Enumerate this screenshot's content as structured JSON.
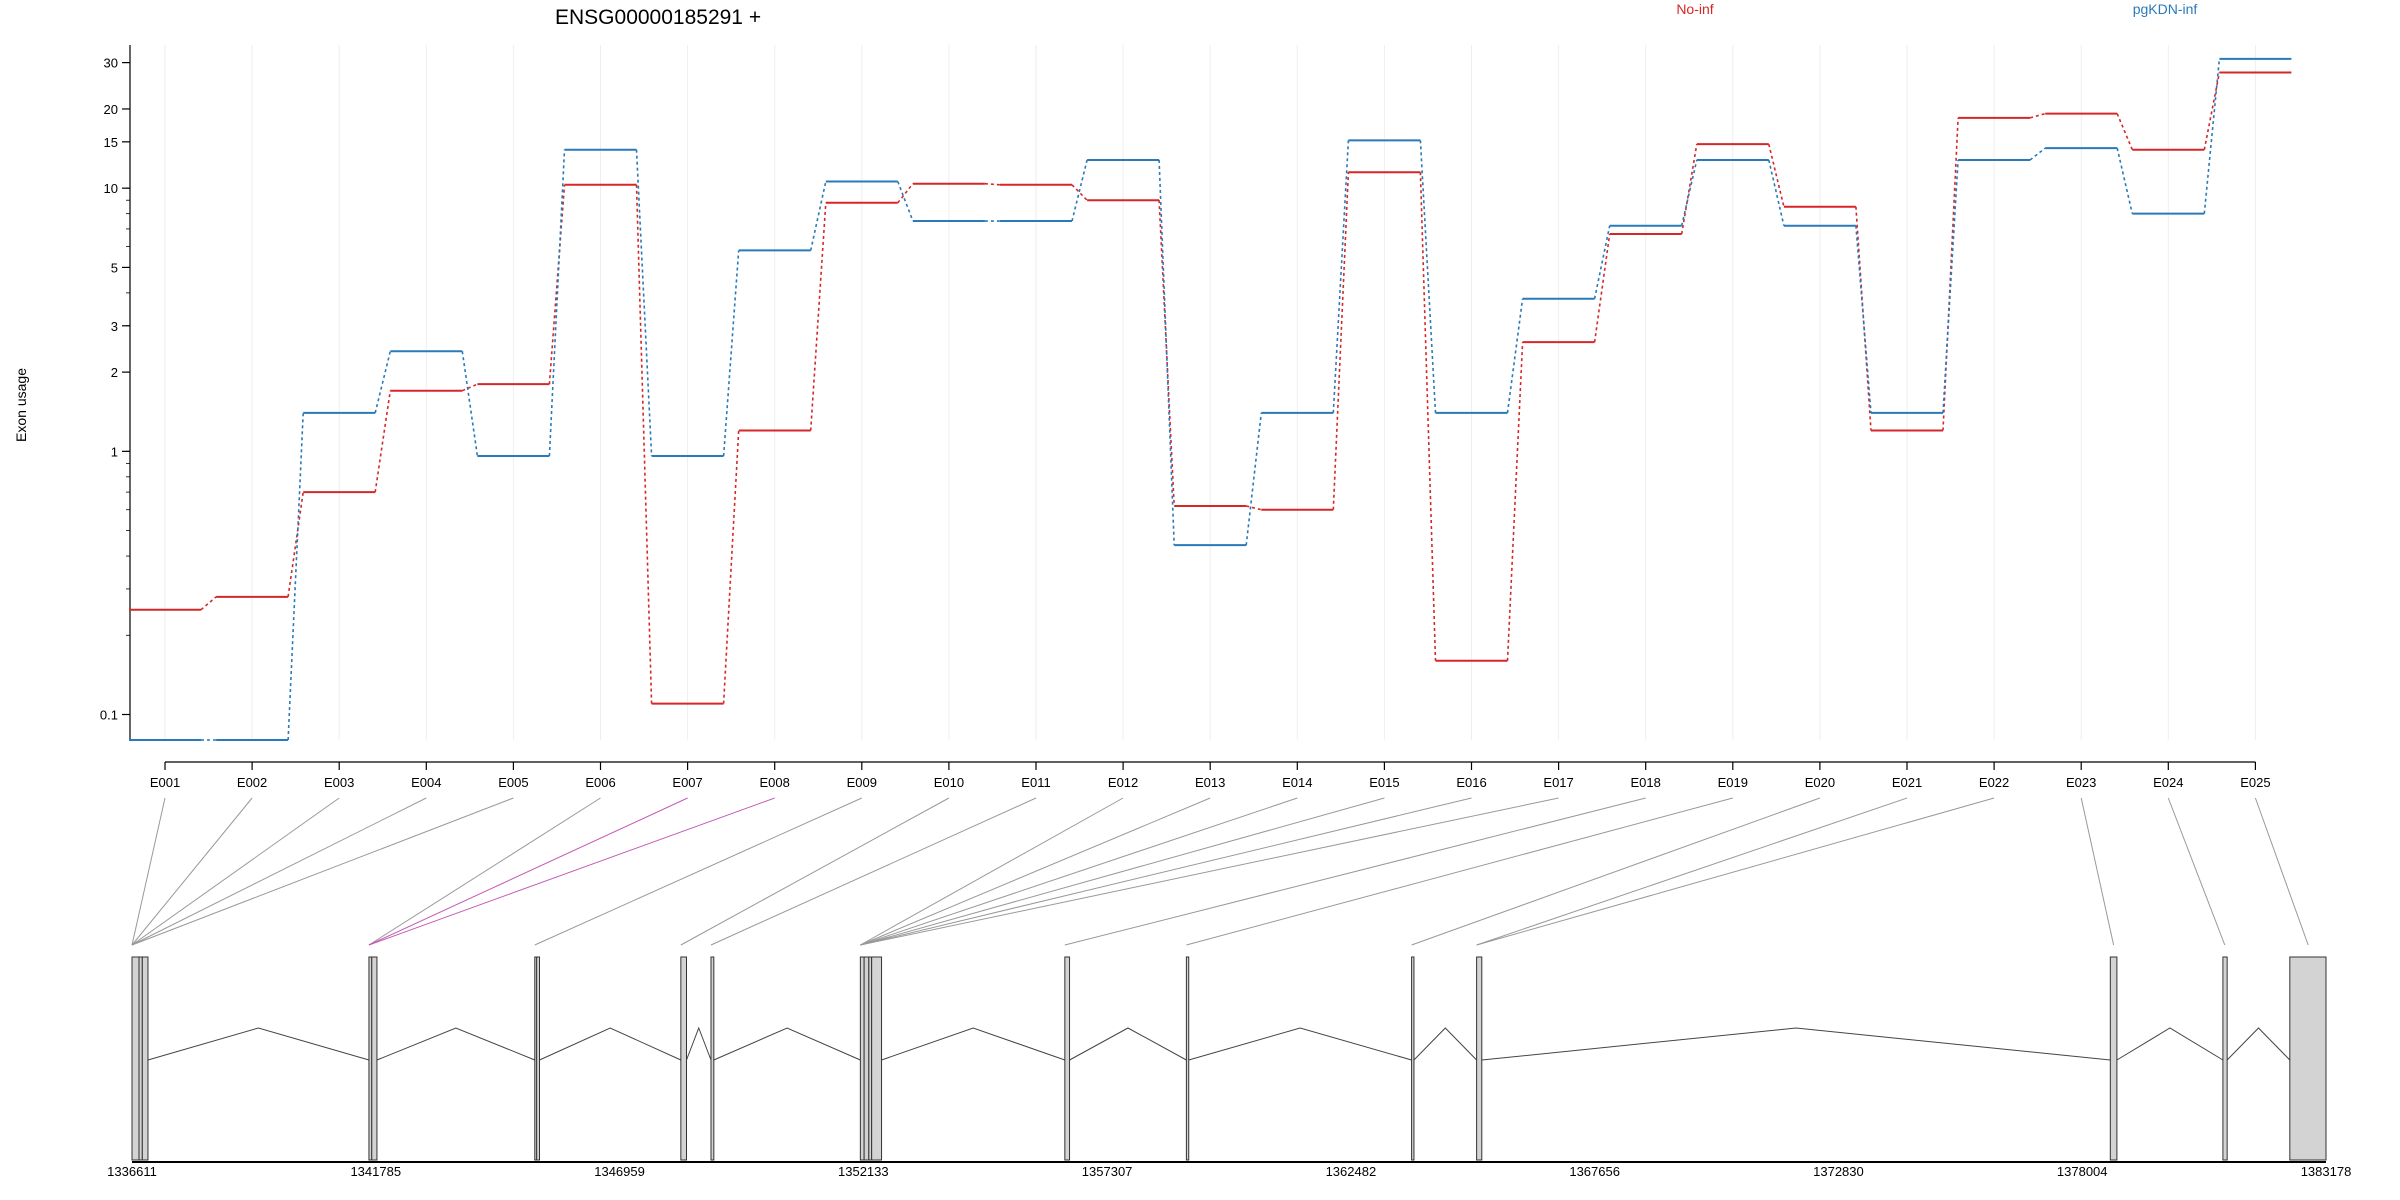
{
  "chart_data": {
    "type": "line",
    "title": "ENSG00000185291 +",
    "ylabel": "Exon usage",
    "xlabel": "",
    "y_scale": "log",
    "ylim": [
      0.08,
      35
    ],
    "y_ticks": [
      0.1,
      1,
      2,
      3,
      5,
      10,
      15,
      20,
      30
    ],
    "y_tick_labels": [
      "0.1",
      "1",
      "2",
      "3",
      "5",
      "10",
      "15",
      "20",
      "30"
    ],
    "grid": "vertical-light",
    "legend_placement": "top",
    "categories": [
      "E001",
      "E002",
      "E003",
      "E004",
      "E005",
      "E006",
      "E007",
      "E008",
      "E009",
      "E010",
      "E011",
      "E012",
      "E013",
      "E014",
      "E015",
      "E016",
      "E017",
      "E018",
      "E019",
      "E020",
      "E021",
      "E022",
      "E023",
      "E024",
      "E025"
    ],
    "series": [
      {
        "name": "No-inf",
        "color": "#d62728",
        "values": [
          0.25,
          0.28,
          0.7,
          1.7,
          1.8,
          10.3,
          0.11,
          1.2,
          8.8,
          10.4,
          10.3,
          9.0,
          0.62,
          0.6,
          11.5,
          0.16,
          2.6,
          6.7,
          14.7,
          8.5,
          1.2,
          18.5,
          19.2,
          14.0,
          27.5
        ]
      },
      {
        "name": "pgKDN-inf",
        "color": "#2a7ab9",
        "values": [
          0.08,
          0.08,
          1.4,
          2.4,
          0.96,
          14.0,
          0.96,
          5.8,
          10.6,
          7.5,
          7.5,
          12.8,
          0.44,
          1.4,
          15.2,
          1.4,
          3.8,
          7.2,
          12.8,
          7.2,
          1.4,
          12.8,
          14.2,
          8.0,
          31.0
        ]
      }
    ],
    "gene_model": {
      "coordinates": [
        "1336611",
        "1341785",
        "1346959",
        "1352133",
        "1357307",
        "1362482",
        "1367656",
        "1372830",
        "1378004",
        "1383178"
      ],
      "axis_range": [
        1336611,
        1383178
      ],
      "exons": [
        [
          1336611,
          1336760
        ],
        [
          1336760,
          1336830
        ],
        [
          1336830,
          1336950
        ],
        [
          1341640,
          1341700
        ],
        [
          1341700,
          1341810
        ],
        [
          1345160,
          1345200
        ],
        [
          1345200,
          1345260
        ],
        [
          1348260,
          1348380
        ],
        [
          1348900,
          1348960
        ],
        [
          1352070,
          1352150
        ],
        [
          1352150,
          1352250
        ],
        [
          1352250,
          1352310
        ],
        [
          1352310,
          1352520
        ],
        [
          1356410,
          1356510
        ],
        [
          1358990,
          1359040
        ],
        [
          1363770,
          1363820
        ],
        [
          1365150,
          1365260
        ],
        [
          1378600,
          1378740
        ],
        [
          1380990,
          1381080
        ],
        [
          1382410,
          1383178
        ]
      ],
      "mapping": [
        {
          "exon": "E001",
          "link_to": 1336611,
          "highlight": false
        },
        {
          "exon": "E002",
          "link_to": 1336611,
          "highlight": false
        },
        {
          "exon": "E003",
          "link_to": 1336611,
          "highlight": false
        },
        {
          "exon": "E004",
          "link_to": 1336611,
          "highlight": false
        },
        {
          "exon": "E005",
          "link_to": 1336611,
          "highlight": false
        },
        {
          "exon": "E006",
          "link_to": 1341640,
          "highlight": false
        },
        {
          "exon": "E007",
          "link_to": 1341640,
          "highlight": true
        },
        {
          "exon": "E008",
          "link_to": 1341640,
          "highlight": true
        },
        {
          "exon": "E009",
          "link_to": 1345160,
          "highlight": false
        },
        {
          "exon": "E010",
          "link_to": 1348260,
          "highlight": false
        },
        {
          "exon": "E011",
          "link_to": 1348900,
          "highlight": false
        },
        {
          "exon": "E012",
          "link_to": 1352070,
          "highlight": false
        },
        {
          "exon": "E013",
          "link_to": 1352070,
          "highlight": false
        },
        {
          "exon": "E014",
          "link_to": 1352070,
          "highlight": false
        },
        {
          "exon": "E015",
          "link_to": 1352070,
          "highlight": false
        },
        {
          "exon": "E016",
          "link_to": 1352070,
          "highlight": false
        },
        {
          "exon": "E017",
          "link_to": 1352070,
          "highlight": false
        },
        {
          "exon": "E018",
          "link_to": 1356410,
          "highlight": false
        },
        {
          "exon": "E019",
          "link_to": 1358990,
          "highlight": false
        },
        {
          "exon": "E020",
          "link_to": 1363770,
          "highlight": false
        },
        {
          "exon": "E021",
          "link_to": 1365150,
          "highlight": false
        },
        {
          "exon": "E022",
          "link_to": 1365150,
          "highlight": false
        },
        {
          "exon": "E023",
          "link_to": 1378670,
          "highlight": false
        },
        {
          "exon": "E024",
          "link_to": 1381030,
          "highlight": false
        },
        {
          "exon": "E025",
          "link_to": 1382800,
          "highlight": false
        }
      ]
    }
  }
}
